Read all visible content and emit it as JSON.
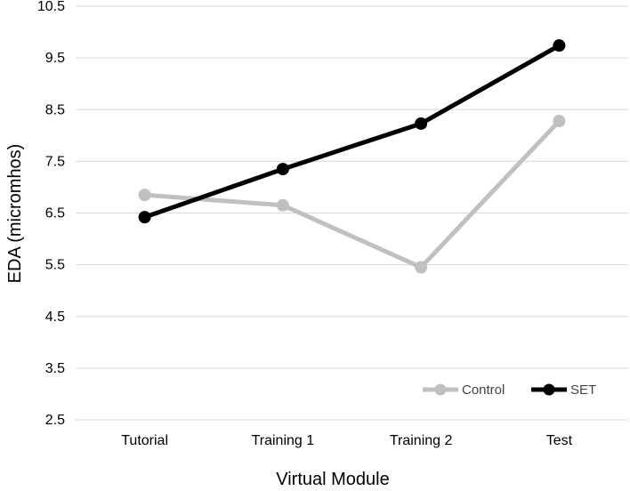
{
  "chart_data": {
    "type": "line",
    "categories": [
      "Tutorial",
      "Training 1",
      "Training 2",
      "Test"
    ],
    "series": [
      {
        "name": "Control",
        "values": [
          6.85,
          6.65,
          5.45,
          8.28
        ],
        "color": "#c0c0c0"
      },
      {
        "name": "SET",
        "values": [
          6.42,
          7.35,
          8.23,
          9.74
        ],
        "color": "#000000"
      }
    ],
    "xlabel": "Virtual Module",
    "ylabel": "EDA (micromhos)",
    "ylim": [
      2.5,
      10.5
    ],
    "yticks": [
      "2.5",
      "3.5",
      "4.5",
      "5.5",
      "6.5",
      "7.5",
      "8.5",
      "9.5",
      "10.5"
    ],
    "grid": true,
    "legend_position": "bottom-right"
  }
}
